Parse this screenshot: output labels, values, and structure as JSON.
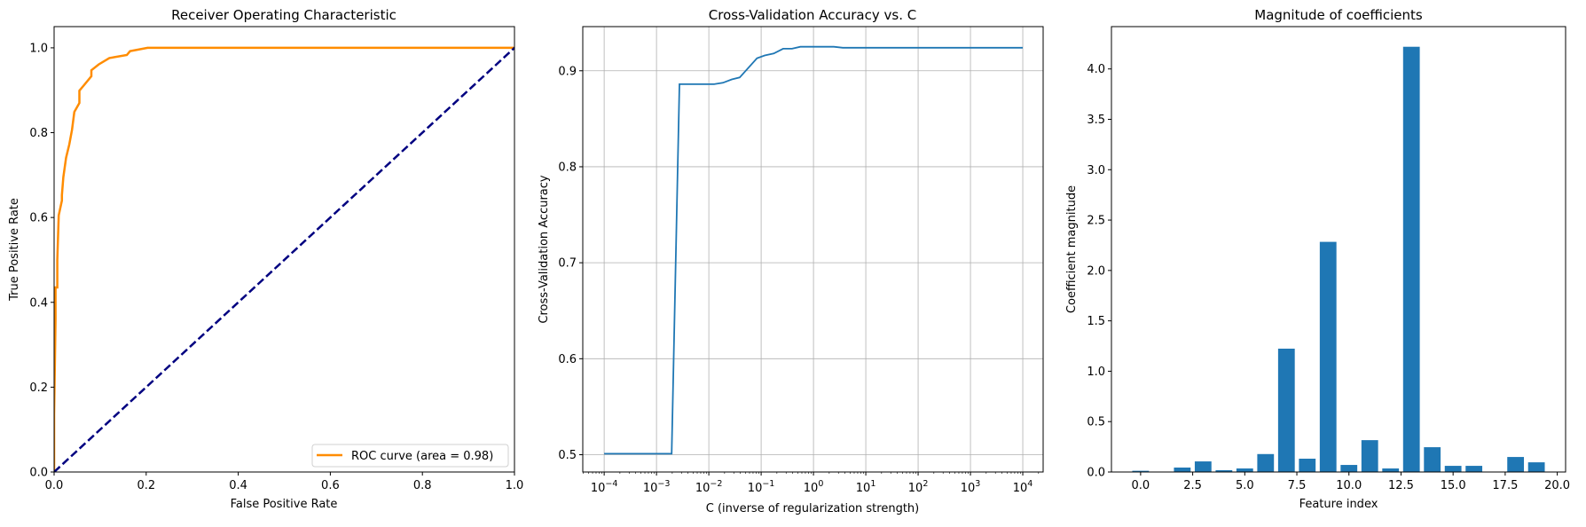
{
  "chart_data": [
    {
      "type": "line",
      "title": "Receiver Operating Characteristic",
      "xlabel": "False Positive Rate",
      "ylabel": "True Positive Rate",
      "xlim": [
        0,
        1
      ],
      "ylim": [
        0,
        1.05
      ],
      "xticks": [
        0,
        0.2,
        0.4,
        0.6,
        0.8,
        1.0
      ],
      "xtick_labels": [
        "0.0",
        "0.2",
        "0.4",
        "0.6",
        "0.8",
        "1.0"
      ],
      "yticks": [
        0,
        0.2,
        0.4,
        0.6,
        0.8,
        1.0
      ],
      "ytick_labels": [
        "0.0",
        "0.2",
        "0.4",
        "0.6",
        "0.8",
        "1.0"
      ],
      "grid": false,
      "legend": {
        "placement": "lower-right",
        "entries": [
          "ROC curve (area = 0.98)"
        ]
      },
      "series": [
        {
          "name": "ROC curve (area = 0.98)",
          "color": "#ff8c00",
          "style": "solid",
          "x": [
            0,
            0,
            0.003,
            0.003,
            0.007,
            0.007,
            0.01,
            0.017,
            0.017,
            0.02,
            0.026,
            0.033,
            0.039,
            0.044,
            0.055,
            0.055,
            0.065,
            0.081,
            0.081,
            0.097,
            0.12,
            0.158,
            0.165,
            0.203,
            1.0
          ],
          "y": [
            0,
            0.136,
            0.36,
            0.435,
            0.435,
            0.5,
            0.605,
            0.64,
            0.653,
            0.695,
            0.741,
            0.772,
            0.807,
            0.849,
            0.87,
            0.899,
            0.912,
            0.933,
            0.947,
            0.961,
            0.976,
            0.983,
            0.992,
            1.0,
            1.0
          ]
        },
        {
          "color": "#000080",
          "style": "dashed",
          "x": [
            0,
            1
          ],
          "y": [
            0,
            1
          ]
        }
      ]
    },
    {
      "type": "line",
      "title": "Cross-Validation Accuracy vs. C",
      "xlabel": "C (inverse of regularization strength)",
      "ylabel": "Cross-Validation Accuracy",
      "xscale": "log",
      "xlim": [
        3.9e-05,
        24500
      ],
      "ylim": [
        0.482,
        0.946
      ],
      "xticks": [
        0.0001,
        0.001,
        0.01,
        0.1,
        1,
        10,
        100,
        1000,
        10000
      ],
      "xtick_labels": [
        [
          "10",
          "−4"
        ],
        [
          "10",
          "−3"
        ],
        [
          "10",
          "−2"
        ],
        [
          "10",
          "−1"
        ],
        [
          "10",
          "0"
        ],
        [
          "10",
          "1"
        ],
        [
          "10",
          "2"
        ],
        [
          "10",
          "3"
        ],
        [
          "10",
          "4"
        ]
      ],
      "yticks": [
        0.5,
        0.6,
        0.7,
        0.8,
        0.9
      ],
      "ytick_labels": [
        "0.5",
        "0.6",
        "0.7",
        "0.8",
        "0.9"
      ],
      "grid": true,
      "series": [
        {
          "color": "#1f77b4",
          "x": [
            0.0001,
            0.00195,
            0.00275,
            0.0126,
            0.0186,
            0.0275,
            0.0389,
            0.0832,
            0.117,
            0.174,
            0.263,
            0.389,
            0.562,
            2.45,
            3.63,
            10000
          ],
          "y": [
            0.501,
            0.501,
            0.886,
            0.886,
            0.8875,
            0.891,
            0.893,
            0.913,
            0.916,
            0.918,
            0.923,
            0.923,
            0.925,
            0.925,
            0.924,
            0.924
          ]
        }
      ]
    },
    {
      "type": "bar",
      "title": "Magnitude of coefficients",
      "xlabel": "Feature index",
      "ylabel": "Coefficient magnitude",
      "xlim": [
        -1.4,
        20.4
      ],
      "ylim": [
        0,
        4.42
      ],
      "xticks": [
        0,
        2.5,
        5,
        7.5,
        10,
        12.5,
        15,
        17.5,
        20
      ],
      "xtick_labels": [
        "0.0",
        "2.5",
        "5.0",
        "7.5",
        "10.0",
        "12.5",
        "15.0",
        "17.5",
        "20.0"
      ],
      "yticks": [
        0,
        0.5,
        1,
        1.5,
        2,
        2.5,
        3,
        3.5,
        4
      ],
      "ytick_labels": [
        "0.0",
        "0.5",
        "1.0",
        "1.5",
        "2.0",
        "2.5",
        "3.0",
        "3.5",
        "4.0"
      ],
      "grid": false,
      "color": "#1f77b4",
      "categories": [
        0,
        1,
        2,
        3,
        4,
        5,
        6,
        7,
        8,
        9,
        10,
        11,
        12,
        13,
        14,
        15,
        16,
        17,
        18,
        19
      ],
      "values": [
        0.012,
        0.0,
        0.044,
        0.105,
        0.018,
        0.035,
        0.178,
        1.224,
        0.132,
        2.284,
        0.07,
        0.316,
        0.035,
        4.22,
        0.246,
        0.061,
        0.061,
        0.0,
        0.149,
        0.096
      ]
    }
  ]
}
